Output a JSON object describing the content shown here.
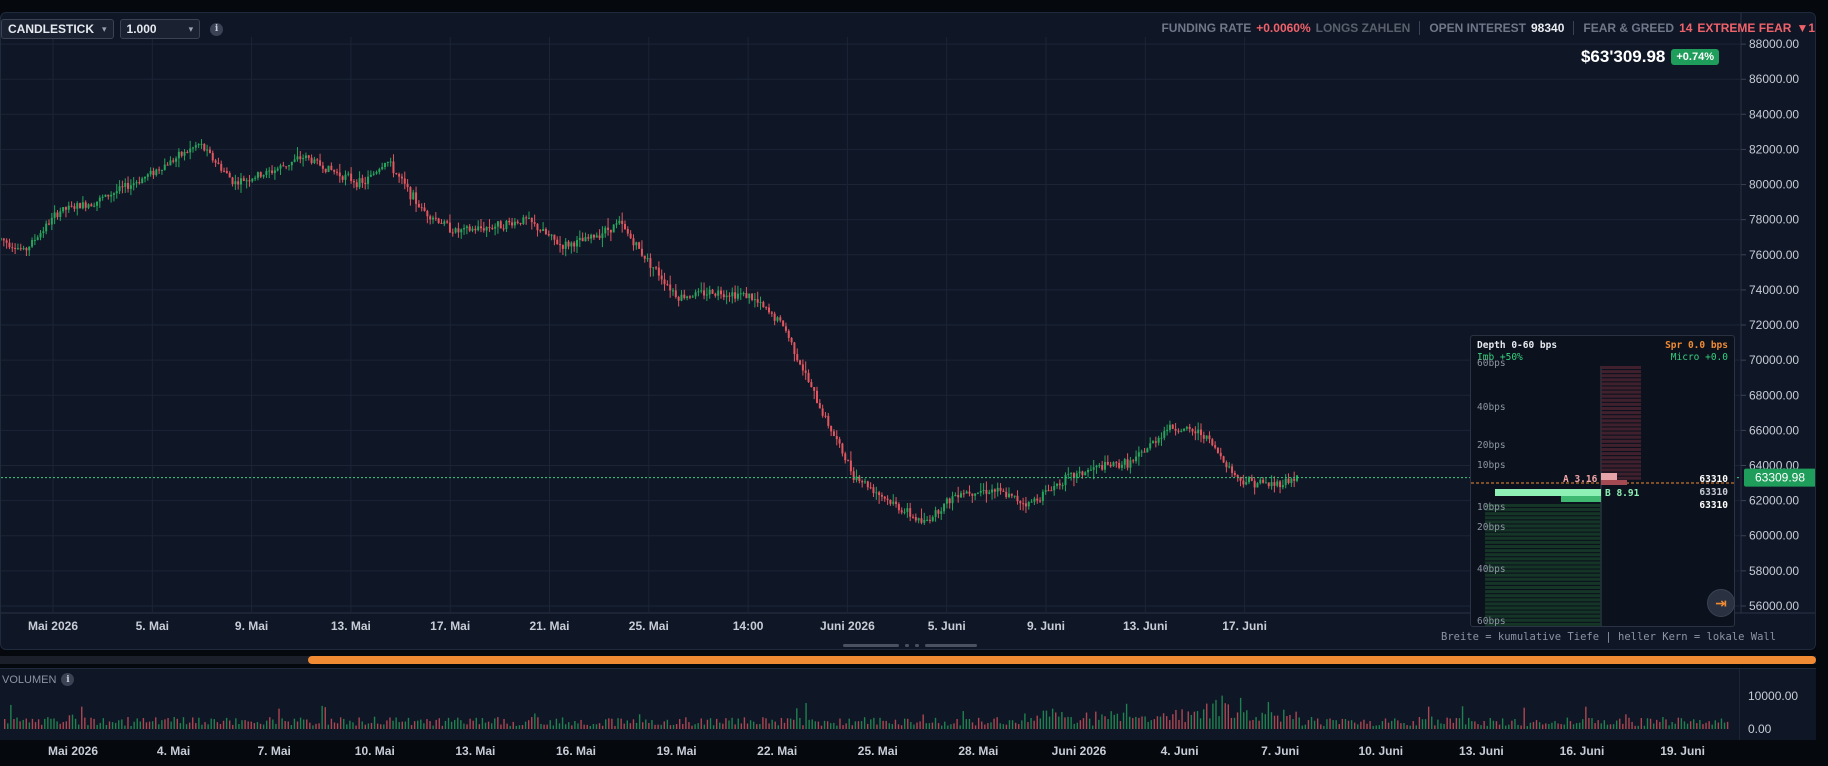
{
  "toolbar": {
    "chart_type": "CANDLESTICK",
    "interval": "1.000"
  },
  "stats": {
    "funding_label": "FUNDING RATE",
    "funding_value": "+0.0060%",
    "funding_note": "LONGS ZAHLEN",
    "oi_label": "OPEN INTEREST",
    "oi_value": "98340",
    "fg_label": "FEAR & GREED",
    "fg_value": "14",
    "fg_text": "EXTREME FEAR",
    "fg_arrow": "▼1"
  },
  "price_header": {
    "price": "$63'309.98",
    "change": "+0.74%"
  },
  "current_price_label": "63309.98",
  "depth_panel": {
    "title": "Depth 0-60 bps",
    "spread": "Spr 0.0 bps",
    "imbalance": "Imb +50%",
    "micro": "Micro +0.0",
    "bps_labels": [
      "60bps",
      "40bps",
      "20bps",
      "10bps",
      "10bps",
      "20bps",
      "40bps",
      "60bps"
    ],
    "ask_label": "A 3.16",
    "bid_label": "B 8.91",
    "levels": [
      "63310",
      "63310",
      "63310"
    ],
    "caption": "Breite = kumulative Tiefe | heller Kern = lokale Wall"
  },
  "volume": {
    "title": "VOLUMEN",
    "axis_labels": [
      "10000.00",
      "0.00"
    ]
  },
  "bottom_axis": [
    "Mai 2026",
    "4. Mai",
    "7. Mai",
    "10. Mai",
    "13. Mai",
    "16. Mai",
    "19. Mai",
    "22. Mai",
    "25. Mai",
    "28. Mai",
    "Juni 2026",
    "4. Juni",
    "7. Juni",
    "10. Juni",
    "13. Juni",
    "16. Juni",
    "19. Juni"
  ],
  "colors": {
    "up": "#26a65b",
    "down": "#e2575f",
    "accent": "#f08b34",
    "price_line": "#35d07f"
  },
  "chart_data": {
    "type": "candlestick",
    "x_ticks": [
      "Mai 2026",
      "5. Mai",
      "9. Mai",
      "13. Mai",
      "17. Mai",
      "21. Mai",
      "25. Mai",
      "14:00",
      "Juni 2026",
      "5. Juni",
      "9. Juni",
      "13. Juni",
      "17. Juni"
    ],
    "y_ticks": [
      88000,
      86000,
      84000,
      82000,
      80000,
      78000,
      76000,
      74000,
      72000,
      70000,
      68000,
      66000,
      64000,
      62000,
      60000,
      58000,
      56000
    ],
    "ylim": [
      55600,
      89200
    ],
    "last_price": 63309.98,
    "series_outline": [
      {
        "x": 0,
        "y": 76900
      },
      {
        "x": 2,
        "y": 76200
      },
      {
        "x": 5,
        "y": 78500
      },
      {
        "x": 8,
        "y": 79000
      },
      {
        "x": 12,
        "y": 80300
      },
      {
        "x": 15,
        "y": 81500
      },
      {
        "x": 17,
        "y": 82300
      },
      {
        "x": 20,
        "y": 80100
      },
      {
        "x": 23,
        "y": 80700
      },
      {
        "x": 26,
        "y": 81600
      },
      {
        "x": 28,
        "y": 80900
      },
      {
        "x": 31,
        "y": 80000
      },
      {
        "x": 33,
        "y": 81400
      },
      {
        "x": 36,
        "y": 78600
      },
      {
        "x": 39,
        "y": 77300
      },
      {
        "x": 42,
        "y": 77600
      },
      {
        "x": 45,
        "y": 78000
      },
      {
        "x": 48,
        "y": 76500
      },
      {
        "x": 50,
        "y": 76800
      },
      {
        "x": 53,
        "y": 77800
      },
      {
        "x": 55,
        "y": 76000
      },
      {
        "x": 58,
        "y": 73600
      },
      {
        "x": 61,
        "y": 73900
      },
      {
        "x": 64,
        "y": 73700
      },
      {
        "x": 67,
        "y": 72000
      },
      {
        "x": 70,
        "y": 67500
      },
      {
        "x": 73,
        "y": 63500
      },
      {
        "x": 76,
        "y": 62000
      },
      {
        "x": 79,
        "y": 60700
      },
      {
        "x": 82,
        "y": 62500
      },
      {
        "x": 85,
        "y": 62600
      },
      {
        "x": 88,
        "y": 61800
      },
      {
        "x": 91,
        "y": 63200
      },
      {
        "x": 94,
        "y": 63900
      },
      {
        "x": 97,
        "y": 64200
      },
      {
        "x": 100,
        "y": 66200
      },
      {
        "x": 103,
        "y": 65800
      },
      {
        "x": 106,
        "y": 63200
      },
      {
        "x": 109,
        "y": 62900
      },
      {
        "x": 111,
        "y": 63310
      }
    ]
  }
}
